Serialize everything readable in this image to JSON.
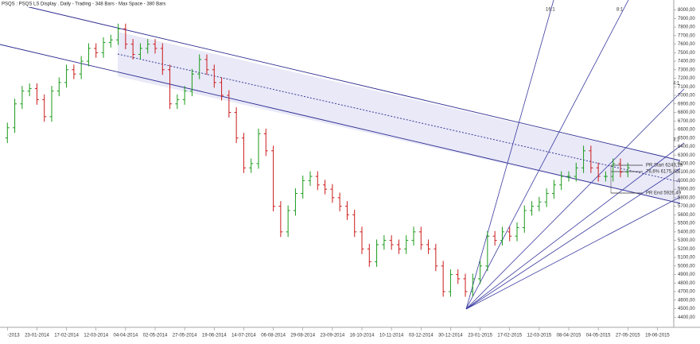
{
  "chart_data": {
    "type": "ohlc",
    "title": "PSQS : PSQS LS Display  .  Daily  -  Trading - 348 Bars  -  Max Space - 380 Bars",
    "up_color": "#1a9a1a",
    "down_color": "#cc1a1a",
    "grid": false,
    "xlim": [
      -1,
      90
    ],
    "xticks": [
      {
        "value": 0,
        "label": "-2013"
      },
      {
        "value": 4,
        "label": "23-01-2014"
      },
      {
        "value": 8,
        "label": "17-02-2014"
      },
      {
        "value": 12,
        "label": "12-03-2014"
      },
      {
        "value": 16,
        "label": "04-04-2014"
      },
      {
        "value": 20,
        "label": "02-05-2014"
      },
      {
        "value": 24,
        "label": "27-05-2014"
      },
      {
        "value": 28,
        "label": "19-06-2014"
      },
      {
        "value": 32,
        "label": "14-07-2014"
      },
      {
        "value": 36,
        "label": "06-08-2014"
      },
      {
        "value": 40,
        "label": "29-08-2014"
      },
      {
        "value": 44,
        "label": "23-09-2014"
      },
      {
        "value": 48,
        "label": "16-10-2014"
      },
      {
        "value": 52,
        "label": "10-11-2014"
      },
      {
        "value": 56,
        "label": "03-12-2014"
      },
      {
        "value": 60,
        "label": "30-12-2014"
      },
      {
        "value": 64,
        "label": "23-01-2015"
      },
      {
        "value": 68,
        "label": "17-02-2015"
      },
      {
        "value": 72,
        "label": "12-03-2015"
      },
      {
        "value": 76,
        "label": "08-04-2015"
      },
      {
        "value": 80,
        "label": "04-05-2015"
      },
      {
        "value": 84,
        "label": "27-05-2015"
      },
      {
        "value": 88,
        "label": "19-06-2015"
      }
    ],
    "ylim": [
      4300,
      8080
    ],
    "yticks": [
      {
        "value": 4400,
        "label": "4400,00"
      },
      {
        "value": 4500,
        "label": "4500,00"
      },
      {
        "value": 4600,
        "label": "4600,00"
      },
      {
        "value": 4700,
        "label": "4700,00"
      },
      {
        "value": 4800,
        "label": "4800,00"
      },
      {
        "value": 4900,
        "label": "4900,00"
      },
      {
        "value": 5000,
        "label": "5000,00"
      },
      {
        "value": 5100,
        "label": "5100,00"
      },
      {
        "value": 5200,
        "label": "5200,00"
      },
      {
        "value": 5300,
        "label": "5300,00"
      },
      {
        "value": 5400,
        "label": "5400,00"
      },
      {
        "value": 5500,
        "label": "5500,00"
      },
      {
        "value": 5600,
        "label": "5600,00"
      },
      {
        "value": 5700,
        "label": "5700,00"
      },
      {
        "value": 5800,
        "label": "5800,00"
      },
      {
        "value": 5900,
        "label": "5900,00"
      },
      {
        "value": 6000,
        "label": "6000,00"
      },
      {
        "value": 6100,
        "label": "6100,00"
      },
      {
        "value": 6200,
        "label": "6200,00"
      },
      {
        "value": 6300,
        "label": "6300,00"
      },
      {
        "value": 6400,
        "label": "6400,00"
      },
      {
        "value": 6500,
        "label": "6500,00"
      },
      {
        "value": 6600,
        "label": "6600,00"
      },
      {
        "value": 6700,
        "label": "6700,00"
      },
      {
        "value": 6800,
        "label": "6800,00"
      },
      {
        "value": 6900,
        "label": "6900,00"
      },
      {
        "value": 7000,
        "label": "7000,00"
      },
      {
        "value": 7100,
        "label": "7100,00"
      },
      {
        "value": 7200,
        "label": "7200,00"
      },
      {
        "value": 7300,
        "label": "7300,00"
      },
      {
        "value": 7400,
        "label": "7400,00"
      },
      {
        "value": 7500,
        "label": "7500,00"
      },
      {
        "value": 7600,
        "label": "7600,00"
      },
      {
        "value": 7700,
        "label": "7700,00"
      },
      {
        "value": 7800,
        "label": "7800,00"
      },
      {
        "value": 7900,
        "label": "7900,00"
      },
      {
        "value": 8000,
        "label": "8000,00"
      }
    ],
    "open": [
      6500,
      6620,
      6900,
      7050,
      7080,
      6950,
      6750,
      7050,
      7150,
      7300,
      7250,
      7400,
      7550,
      7500,
      7620,
      7650,
      7780,
      7600,
      7480,
      7550,
      7600,
      7550,
      7300,
      6900,
      6950,
      7050,
      7250,
      7420,
      7300,
      7150,
      7000,
      6800,
      6500,
      6150,
      6200,
      6550,
      6350,
      5700,
      5400,
      5650,
      5850,
      6000,
      6050,
      5950,
      5900,
      5800,
      5700,
      5600,
      5400,
      5200,
      5050,
      5250,
      5300,
      5250,
      5200,
      5300,
      5400,
      5250,
      5200,
      5000,
      4700,
      4900,
      4850,
      4700,
      4850,
      5000,
      5350,
      5300,
      5400,
      5350,
      5450,
      5650,
      5700,
      5750,
      5850,
      5950,
      6050,
      6050,
      6150,
      6350,
      6150,
      6050,
      6050,
      6200,
      6100
    ],
    "high": [
      6680,
      6960,
      7110,
      7140,
      7140,
      7010,
      7110,
      7210,
      7360,
      7360,
      7460,
      7610,
      7610,
      7680,
      7710,
      7840,
      7840,
      7660,
      7610,
      7660,
      7660,
      7610,
      7360,
      7010,
      7110,
      7310,
      7480,
      7480,
      7360,
      7210,
      7060,
      6860,
      6560,
      6260,
      6610,
      6610,
      6410,
      5760,
      5710,
      5910,
      6060,
      6110,
      6110,
      6010,
      5960,
      5860,
      5760,
      5660,
      5460,
      5260,
      5310,
      5360,
      5360,
      5310,
      5360,
      5460,
      5460,
      5310,
      5260,
      5060,
      4960,
      4960,
      4910,
      4910,
      5060,
      5410,
      5410,
      5460,
      5460,
      5510,
      5710,
      5760,
      5810,
      5910,
      6010,
      6110,
      6110,
      6210,
      6410,
      6410,
      6210,
      6110,
      6260,
      6260,
      6210
    ],
    "low": [
      6440,
      6560,
      6840,
      6990,
      6890,
      6690,
      6690,
      6990,
      7090,
      7190,
      7190,
      7340,
      7440,
      7440,
      7560,
      7590,
      7540,
      7420,
      7420,
      7490,
      7490,
      7240,
      6840,
      6840,
      6890,
      6990,
      7190,
      7240,
      7090,
      6940,
      6740,
      6440,
      6090,
      6090,
      6140,
      6290,
      5640,
      5340,
      5340,
      5590,
      5790,
      5940,
      5890,
      5840,
      5740,
      5640,
      5540,
      5340,
      5140,
      4990,
      4990,
      5190,
      5190,
      5140,
      5140,
      5240,
      5190,
      5140,
      4940,
      4640,
      4640,
      4790,
      4640,
      4640,
      4790,
      4940,
      5240,
      5240,
      5290,
      5290,
      5390,
      5590,
      5640,
      5690,
      5790,
      5890,
      5990,
      5990,
      6090,
      6090,
      5990,
      5990,
      5990,
      6040,
      6040
    ],
    "close": [
      6620,
      6900,
      7050,
      7080,
      6950,
      6750,
      7050,
      7150,
      7300,
      7250,
      7400,
      7550,
      7500,
      7620,
      7650,
      7780,
      7600,
      7480,
      7550,
      7600,
      7550,
      7300,
      6900,
      6950,
      7050,
      7250,
      7420,
      7300,
      7150,
      7000,
      6800,
      6500,
      6150,
      6200,
      6550,
      6350,
      5700,
      5400,
      5650,
      5850,
      6000,
      6050,
      5950,
      5900,
      5800,
      5700,
      5600,
      5400,
      5200,
      5050,
      5250,
      5300,
      5250,
      5200,
      5300,
      5400,
      5250,
      5200,
      5000,
      4700,
      4900,
      4850,
      4700,
      4850,
      5000,
      5350,
      5300,
      5400,
      5350,
      5450,
      5650,
      5700,
      5750,
      5850,
      5950,
      6050,
      6050,
      6150,
      6350,
      6150,
      6050,
      6050,
      6200,
      6100,
      6150
    ],
    "fan_labels": [
      "16:1",
      "8:1",
      "4:1",
      "3:1"
    ],
    "retracement_labels": [
      "PR Start 6243,19",
      "78,6% 6175,42",
      "PR End 5926,49"
    ]
  }
}
